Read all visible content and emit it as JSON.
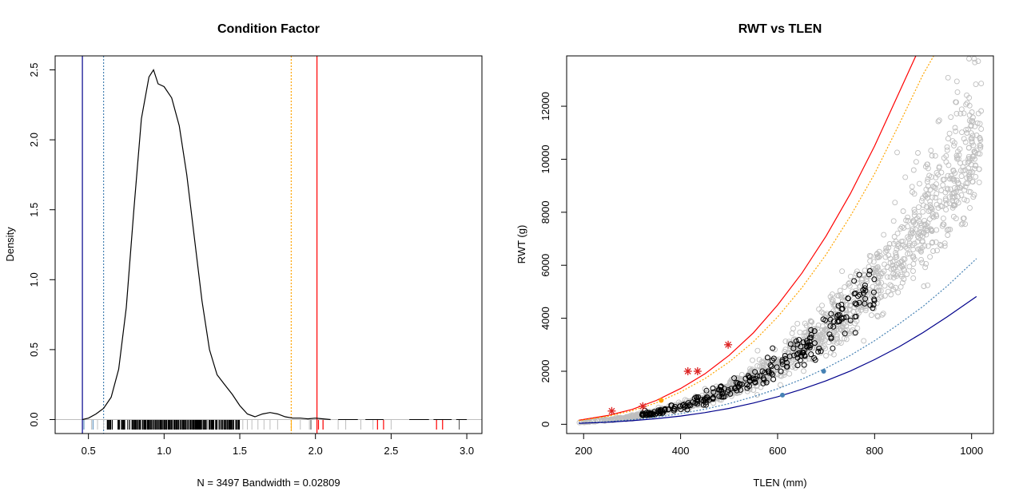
{
  "chart_data": [
    {
      "type": "line",
      "title": "Condition Factor",
      "xlabel": "N = 3497   Bandwidth = 0.02809",
      "ylabel": "Density",
      "xlim": [
        0.28,
        3.1
      ],
      "ylim": [
        -0.1,
        2.6
      ],
      "xticks": [
        "0.5",
        "1.0",
        "1.5",
        "2.0",
        "2.5",
        "3.0"
      ],
      "yticks": [
        "0.0",
        "0.5",
        "1.0",
        "1.5",
        "2.0",
        "2.5"
      ],
      "grid": false,
      "colors": {
        "density": "#000000",
        "baseline": "#bebebe",
        "lower_solid": "#00008b",
        "lower_dotted": "#4682b4",
        "upper_dotted": "#ffa500",
        "upper_solid": "#ff0000"
      },
      "density_curve": {
        "x": [
          0.46,
          0.5,
          0.55,
          0.6,
          0.65,
          0.7,
          0.75,
          0.8,
          0.85,
          0.9,
          0.93,
          0.96,
          1.0,
          1.05,
          1.1,
          1.15,
          1.2,
          1.25,
          1.3,
          1.35,
          1.4,
          1.45,
          1.5,
          1.55,
          1.6,
          1.65,
          1.7,
          1.75,
          1.8,
          1.85,
          1.9,
          1.95,
          2.0,
          2.05,
          2.1
        ],
        "y": [
          0.0,
          0.01,
          0.04,
          0.08,
          0.16,
          0.36,
          0.8,
          1.5,
          2.15,
          2.45,
          2.5,
          2.4,
          2.38,
          2.3,
          2.1,
          1.75,
          1.3,
          0.85,
          0.5,
          0.32,
          0.25,
          0.18,
          0.1,
          0.04,
          0.02,
          0.04,
          0.05,
          0.04,
          0.02,
          0.01,
          0.01,
          0.005,
          0.01,
          0.005,
          0.0
        ]
      },
      "reference_lines": [
        {
          "x": 0.46,
          "color": "#00008b",
          "style": "solid"
        },
        {
          "x": 0.6,
          "color": "#4682b4",
          "style": "dotted"
        },
        {
          "x": 1.84,
          "color": "#ffa500",
          "style": "dotted"
        },
        {
          "x": 2.01,
          "color": "#ff0000",
          "style": "solid"
        }
      ],
      "rug": {
        "black_range": [
          0.62,
          1.5
        ],
        "gray": [
          0.47,
          0.52,
          0.56,
          0.6,
          1.52,
          1.55,
          1.58,
          1.62,
          1.66,
          1.7,
          1.75,
          1.9,
          1.96,
          2.05,
          2.15,
          2.2,
          2.3,
          2.38,
          2.5
        ],
        "blue": [
          0.47,
          0.53
        ],
        "orange": [
          1.84
        ],
        "red": [
          2.02,
          2.05,
          2.41,
          2.45,
          2.8,
          2.84
        ],
        "dark": [
          1.97,
          2.95
        ]
      }
    },
    {
      "type": "scatter",
      "title": "RWT vs TLEN",
      "xlabel": "TLEN (mm)",
      "ylabel": "RWT (g)",
      "xlim": [
        165,
        1045
      ],
      "ylim": [
        -350,
        13900
      ],
      "xticks": [
        "200",
        "400",
        "600",
        "800",
        "1000"
      ],
      "yticks": [
        "0",
        "2000",
        "4000",
        "6000",
        "8000",
        "10000",
        "12000"
      ],
      "grid": false,
      "colors": {
        "gray_points": "#bebebe",
        "black_points": "#000000",
        "red_curve": "#ff0000",
        "orange_curve": "#ffa500",
        "steelblue_curve": "#4682b4",
        "navy_curve": "#00008b",
        "red_stars": "#dd2222",
        "blue_points": "#4682b4",
        "orange_points": "#ffa500"
      },
      "curves": [
        {
          "name": "red",
          "x": [
            190,
            250,
            300,
            350,
            400,
            450,
            500,
            550,
            600,
            650,
            700,
            750,
            800,
            850,
            900
          ],
          "y": [
            150,
            330,
            560,
            900,
            1350,
            1900,
            2600,
            3450,
            4500,
            5700,
            7100,
            8700,
            10500,
            12500,
            14500
          ],
          "style": "solid"
        },
        {
          "name": "orange",
          "x": [
            190,
            250,
            300,
            350,
            400,
            450,
            500,
            550,
            600,
            650,
            700,
            750,
            800,
            850,
            900,
            925
          ],
          "y": [
            135,
            300,
            510,
            810,
            1220,
            1720,
            2350,
            3110,
            4050,
            5150,
            6400,
            7850,
            9450,
            11300,
            13200,
            14000
          ],
          "style": "dotted"
        },
        {
          "name": "steelblue",
          "x": [
            190,
            250,
            300,
            350,
            400,
            450,
            500,
            550,
            600,
            650,
            700,
            750,
            800,
            850,
            900,
            950,
            1010
          ],
          "y": [
            45,
            100,
            170,
            270,
            400,
            570,
            780,
            1040,
            1340,
            1700,
            2120,
            2600,
            3150,
            3780,
            4450,
            5220,
            6250
          ],
          "style": "dotted"
        },
        {
          "name": "navy",
          "x": [
            190,
            250,
            300,
            350,
            400,
            450,
            500,
            550,
            600,
            650,
            700,
            750,
            800,
            850,
            900,
            950,
            1010
          ],
          "y": [
            35,
            78,
            135,
            210,
            310,
            440,
            600,
            800,
            1040,
            1320,
            1640,
            2010,
            2440,
            2920,
            3460,
            4060,
            4820
          ],
          "style": "solid"
        }
      ],
      "red_stars": [
        [
          258,
          500
        ],
        [
          322,
          680
        ],
        [
          415,
          2000
        ],
        [
          435,
          2000
        ],
        [
          498,
          3000
        ]
      ],
      "blue_points": [
        [
          610,
          1100
        ],
        [
          695,
          2000
        ]
      ],
      "orange_points": [
        [
          360,
          900
        ]
      ],
      "black_points_cloud": {
        "x_range": [
          320,
          800
        ],
        "note_free": true
      },
      "gray_points_cloud": {
        "x_range": [
          190,
          1020
        ]
      }
    }
  ]
}
